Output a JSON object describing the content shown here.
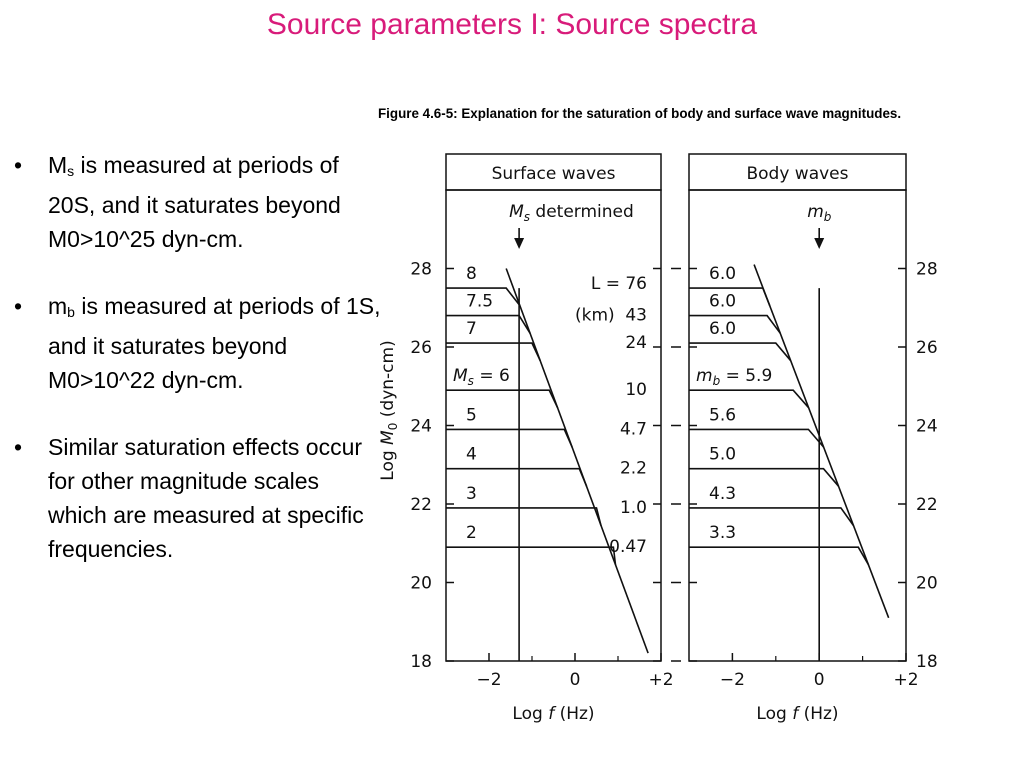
{
  "slide": {
    "title": "Source parameters I: Source spectra",
    "title_color": "#d81b7a"
  },
  "bullets": [
    {
      "symbol": "M",
      "sub": "s",
      "text": " is measured at periods of 20S, and it saturates beyond M0>10^25 dyn-cm."
    },
    {
      "symbol": "m",
      "sub": "b",
      "text": " is measured at periods of 1S, and it saturates beyond M0>10^22 dyn-cm."
    },
    {
      "symbol": "",
      "sub": "",
      "text": "Similar saturation effects occur for other magnitude scales which are measured at specific frequencies."
    }
  ],
  "figure": {
    "caption": "Figure 4.6-5: Explanation for the saturation of body and surface wave magnitudes."
  },
  "chart_data": [
    {
      "type": "line",
      "title": "Surface waves",
      "xlabel": "Log f (Hz)",
      "ylabel": "Log M0 (dyn-cm)",
      "xlim": [
        -3.0,
        2.0
      ],
      "ylim": [
        18,
        30
      ],
      "xticks": [
        "−2",
        "0",
        "+2"
      ],
      "yticks": [
        "28",
        "26",
        "24",
        "22",
        "20",
        "18"
      ],
      "period_line": {
        "x": -1.3,
        "label": "Ms determined"
      },
      "header_labels": {
        "length": "L = 76",
        "unit": "(km)"
      },
      "series": [
        {
          "name": "8",
          "L": "",
          "plateau": 27.5,
          "corner_f": -1.6
        },
        {
          "name": "7.5",
          "L": "43",
          "plateau": 26.8,
          "corner_f": -1.3
        },
        {
          "name": "7",
          "L": "24",
          "plateau": 26.1,
          "corner_f": -1.0
        },
        {
          "name": "Ms = 6",
          "L": "10",
          "plateau": 24.9,
          "corner_f": -0.6
        },
        {
          "name": "5",
          "L": "4.7",
          "plateau": 23.9,
          "corner_f": -0.25
        },
        {
          "name": "4",
          "L": "2.2",
          "plateau": 22.9,
          "corner_f": 0.1
        },
        {
          "name": "3",
          "L": "1.0",
          "plateau": 21.9,
          "corner_f": 0.5
        },
        {
          "name": "2",
          "L": "0.47",
          "plateau": 20.9,
          "corner_f": 0.9
        }
      ],
      "asymptote": [
        [
          -1.6,
          28.0
        ],
        [
          1.7,
          18.2
        ]
      ]
    },
    {
      "type": "line",
      "title": "Body waves",
      "xlabel": "Log f (Hz)",
      "ylabel": "",
      "xlim": [
        -3.0,
        2.0
      ],
      "ylim": [
        18,
        30
      ],
      "xticks": [
        "−2",
        "0",
        "+2"
      ],
      "yticks": [
        "28",
        "26",
        "24",
        "22",
        "20",
        "18"
      ],
      "period_line": {
        "x": 0.0,
        "label": "mb"
      },
      "series": [
        {
          "name": "6.0",
          "plateau": 27.5,
          "corner_f": -1.3
        },
        {
          "name": "6.0",
          "plateau": 26.8,
          "corner_f": -1.2
        },
        {
          "name": "6.0",
          "plateau": 26.1,
          "corner_f": -1.0
        },
        {
          "name": "mb = 5.9",
          "plateau": 24.9,
          "corner_f": -0.6
        },
        {
          "name": "5.6",
          "plateau": 23.9,
          "corner_f": -0.25
        },
        {
          "name": "5.0",
          "plateau": 22.9,
          "corner_f": 0.1
        },
        {
          "name": "4.3",
          "plateau": 21.9,
          "corner_f": 0.5
        },
        {
          "name": "3.3",
          "plateau": 20.9,
          "corner_f": 0.9
        }
      ],
      "asymptote": [
        [
          -1.5,
          28.1
        ],
        [
          1.6,
          19.1
        ]
      ]
    }
  ]
}
